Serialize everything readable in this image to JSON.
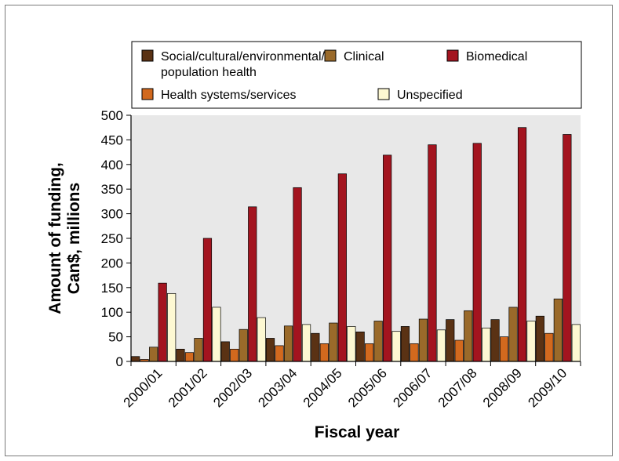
{
  "chart_data": {
    "type": "bar",
    "title": "",
    "xlabel": "Fiscal year",
    "ylabel_lines": [
      "Amount of funding,",
      "Can$, millions"
    ],
    "ylim": [
      0,
      500
    ],
    "yticks": [
      0,
      50,
      100,
      150,
      200,
      250,
      300,
      350,
      400,
      450,
      500
    ],
    "grid": false,
    "legend_position": "top",
    "categories": [
      "2000/01",
      "2001/02",
      "2002/03",
      "2003/04",
      "2004/05",
      "2005/06",
      "2006/07",
      "2007/08",
      "2008/09",
      "2009/10"
    ],
    "series": [
      {
        "name_lines": [
          "Social/cultural/environmental/",
          "population health"
        ],
        "color": "#5a3214",
        "values": [
          10,
          25,
          40,
          47,
          57,
          60,
          71,
          85,
          85,
          92
        ]
      },
      {
        "name_lines": [
          "Health systems/services"
        ],
        "color": "#d2691e",
        "values": [
          4,
          18,
          25,
          32,
          36,
          36,
          36,
          43,
          50,
          57
        ]
      },
      {
        "name_lines": [
          "Clinical"
        ],
        "color": "#9a6a2a",
        "values": [
          29,
          47,
          65,
          72,
          78,
          82,
          86,
          103,
          110,
          127
        ]
      },
      {
        "name_lines": [
          "Biomedical"
        ],
        "color": "#a3141f",
        "values": [
          159,
          250,
          314,
          353,
          381,
          419,
          440,
          443,
          475,
          461
        ]
      },
      {
        "name_lines": [
          "Unspecified"
        ],
        "color": "#fdf8d2",
        "values": [
          138,
          110,
          89,
          75,
          71,
          61,
          64,
          68,
          82,
          75
        ]
      }
    ]
  }
}
